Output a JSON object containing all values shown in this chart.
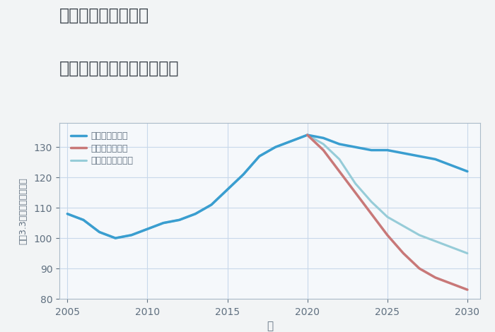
{
  "title_line1": "福岡県春日市惣利の",
  "title_line2": "中古マンションの価格推移",
  "xlabel": "年",
  "ylabel": "坪（3.3㎡）単価（万円）",
  "background_color": "#f2f4f5",
  "plot_bg_color": "#f5f8fb",
  "grid_color": "#c8d8ea",
  "ylim": [
    80,
    138
  ],
  "yticks": [
    80,
    90,
    100,
    110,
    120,
    130
  ],
  "xlim": [
    2004.5,
    2030.8
  ],
  "xticks": [
    2005,
    2010,
    2015,
    2020,
    2025,
    2030
  ],
  "good_scenario": {
    "label": "グッドシナリオ",
    "color": "#3a9ed0",
    "linewidth": 2.5,
    "years": [
      2005,
      2006,
      2007,
      2008,
      2009,
      2010,
      2011,
      2012,
      2013,
      2014,
      2015,
      2016,
      2017,
      2018,
      2019,
      2020,
      2021,
      2022,
      2023,
      2024,
      2025,
      2026,
      2027,
      2028,
      2029,
      2030
    ],
    "values": [
      108,
      106,
      102,
      100,
      101,
      103,
      105,
      106,
      108,
      111,
      116,
      121,
      127,
      130,
      132,
      134,
      133,
      131,
      130,
      129,
      129,
      128,
      127,
      126,
      124,
      122
    ]
  },
  "bad_scenario": {
    "label": "バッドシナリオ",
    "color": "#c87878",
    "linewidth": 2.5,
    "years": [
      2020,
      2021,
      2022,
      2023,
      2024,
      2025,
      2026,
      2027,
      2028,
      2029,
      2030
    ],
    "values": [
      134,
      129,
      122,
      115,
      108,
      101,
      95,
      90,
      87,
      85,
      83
    ]
  },
  "normal_scenario": {
    "label": "ノーマルシナリオ",
    "color": "#96ccd8",
    "linewidth": 2.2,
    "years": [
      2005,
      2006,
      2007,
      2008,
      2009,
      2010,
      2011,
      2012,
      2013,
      2014,
      2015,
      2016,
      2017,
      2018,
      2019,
      2020,
      2021,
      2022,
      2023,
      2024,
      2025,
      2026,
      2027,
      2028,
      2029,
      2030
    ],
    "values": [
      108,
      106,
      102,
      100,
      101,
      103,
      105,
      106,
      108,
      111,
      116,
      121,
      127,
      130,
      132,
      134,
      131,
      126,
      118,
      112,
      107,
      104,
      101,
      99,
      97,
      95
    ]
  },
  "title_color": "#404850",
  "axis_color": "#607080",
  "tick_color": "#607080",
  "title_fontsize": 17,
  "legend_fontsize": 9
}
